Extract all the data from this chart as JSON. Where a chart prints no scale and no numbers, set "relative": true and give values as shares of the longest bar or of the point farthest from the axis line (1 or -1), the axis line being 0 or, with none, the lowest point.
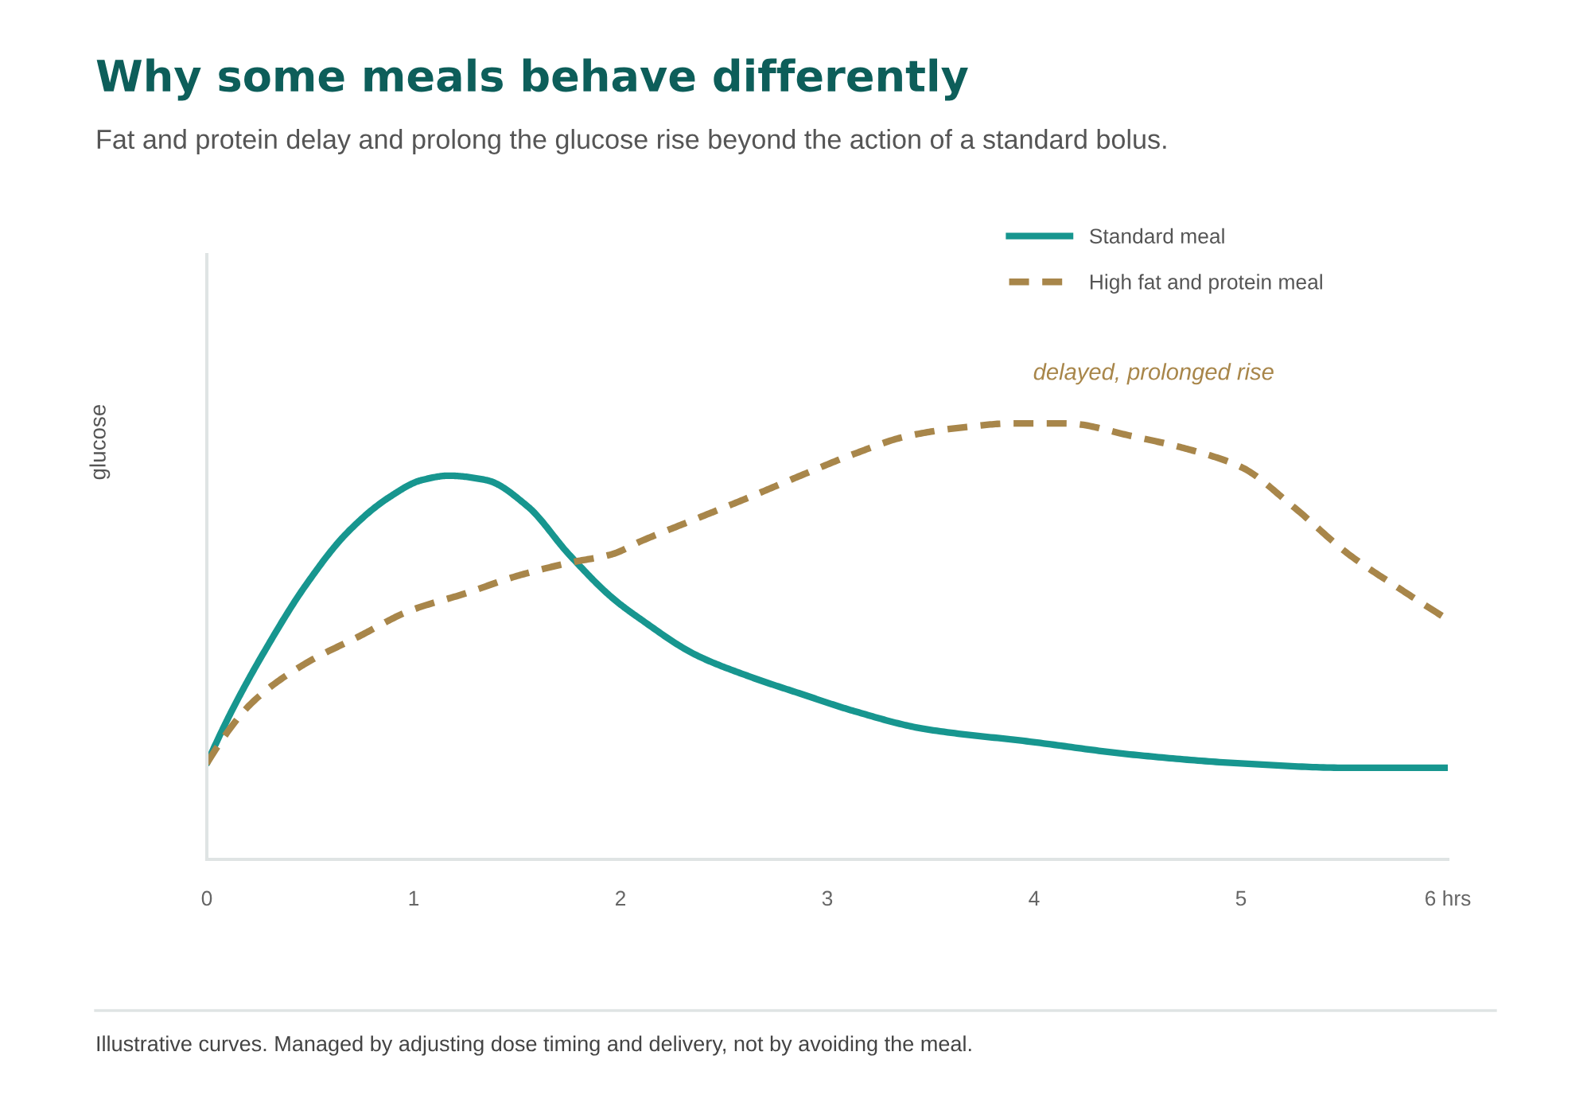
{
  "chart_data": {
    "type": "line",
    "title": "Why some meals behave differently",
    "subtitle": "Fat and protein delay and prolong the glucose rise beyond the action of a standard bolus.",
    "ylabel": "glucose",
    "relative": true,
    "xlim": [
      0,
      6
    ],
    "xticks": [
      0,
      1,
      2,
      3,
      4,
      5,
      {
        "value": 6,
        "label": "6 hrs"
      }
    ],
    "legend": "top right",
    "series": [
      {
        "name": "Standard meal",
        "color": "#17968f",
        "line_style": "solid",
        "x": [
          0,
          0.12,
          0.27,
          0.48,
          0.68,
          0.88,
          1.04,
          1.17,
          1.35,
          1.55,
          1.75,
          1.96,
          2.1,
          2.36,
          2.62,
          2.87,
          3.13,
          3.46,
          3.98,
          4.48,
          5.0,
          5.52,
          6.0
        ],
        "values": [
          0.22,
          0.34,
          0.47,
          0.63,
          0.75,
          0.83,
          0.87,
          0.88,
          0.87,
          0.81,
          0.7,
          0.6,
          0.55,
          0.47,
          0.42,
          0.38,
          0.34,
          0.3,
          0.27,
          0.24,
          0.22,
          0.21,
          0.21
        ]
      },
      {
        "name": "High fat and protein meal",
        "color": "#a8864a",
        "line_style": "dashed",
        "x": [
          0,
          0.22,
          0.48,
          0.73,
          0.98,
          1.25,
          1.5,
          1.75,
          1.96,
          2.1,
          2.36,
          2.62,
          2.87,
          3.13,
          3.38,
          3.64,
          3.9,
          4.15,
          4.48,
          4.75,
          5.0,
          5.25,
          5.52,
          5.77,
          6.0
        ],
        "values": [
          0.22,
          0.36,
          0.45,
          0.51,
          0.57,
          0.61,
          0.65,
          0.68,
          0.7,
          0.73,
          0.78,
          0.83,
          0.88,
          0.93,
          0.97,
          0.99,
          1.0,
          1.0,
          0.97,
          0.94,
          0.9,
          0.81,
          0.7,
          0.62,
          0.55
        ]
      }
    ],
    "annotations": [
      "delayed, prolonged rise",
      "Illustrative curves. Managed by adjusting dose timing and delivery, not by avoiding the meal."
    ]
  }
}
